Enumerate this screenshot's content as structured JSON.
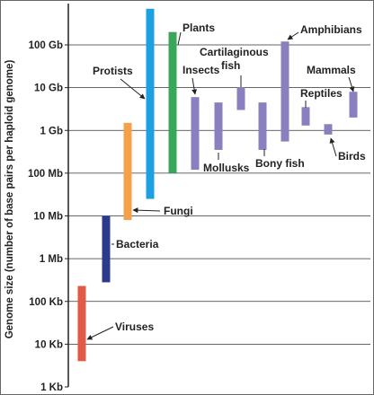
{
  "chart_data": {
    "type": "bar",
    "subtype": "floating-range",
    "ylabel": "Genome size (number of base pairs per haploid genome)",
    "xlabel": "",
    "title": "",
    "yscale": "log",
    "ylim_bp": [
      1000,
      1000000000000
    ],
    "grid": true,
    "yticks": [
      {
        "label": "1 Kb",
        "value": 1000
      },
      {
        "label": "10 Kb",
        "value": 10000
      },
      {
        "label": "100 Kb",
        "value": 100000
      },
      {
        "label": "1 Mb",
        "value": 1000000
      },
      {
        "label": "10 Mb",
        "value": 10000000
      },
      {
        "label": "100 Mb",
        "value": 100000000
      },
      {
        "label": "1 Gb",
        "value": 1000000000
      },
      {
        "label": "10 Gb",
        "value": 10000000000
      },
      {
        "label": "100 Gb",
        "value": 100000000000
      }
    ],
    "series": [
      {
        "name": "Viruses",
        "min": 4000,
        "max": 230000,
        "color": "#e05a45"
      },
      {
        "name": "Bacteria",
        "min": 280000,
        "max": 10000000,
        "color": "#2c3a8c"
      },
      {
        "name": "Fungi",
        "min": 8000000,
        "max": 1500000000,
        "color": "#f5a04a"
      },
      {
        "name": "Protists",
        "min": 25000000,
        "max": 700000000000,
        "color": "#1ca0e0"
      },
      {
        "name": "Plants",
        "min": 100000000,
        "max": 200000000000,
        "color": "#3aa65a"
      },
      {
        "name": "Insects",
        "min": 120000000,
        "max": 6000000000,
        "color": "#8a80c0"
      },
      {
        "name": "Mollusks",
        "min": 350000000,
        "max": 4500000000,
        "color": "#8a80c0"
      },
      {
        "name": "Cartilaginous fish",
        "min": 3000000000,
        "max": 10000000000,
        "color": "#8a80c0"
      },
      {
        "name": "Bony fish",
        "min": 350000000,
        "max": 4500000000,
        "color": "#8a80c0"
      },
      {
        "name": "Amphibians",
        "min": 550000000,
        "max": 120000000000,
        "color": "#8a80c0"
      },
      {
        "name": "Reptiles",
        "min": 1300000000,
        "max": 3500000000,
        "color": "#8a80c0"
      },
      {
        "name": "Birds",
        "min": 800000000,
        "max": 1400000000,
        "color": "#8a80c0"
      },
      {
        "name": "Mammals",
        "min": 2000000000,
        "max": 8000000000,
        "color": "#8a80c0"
      }
    ]
  }
}
